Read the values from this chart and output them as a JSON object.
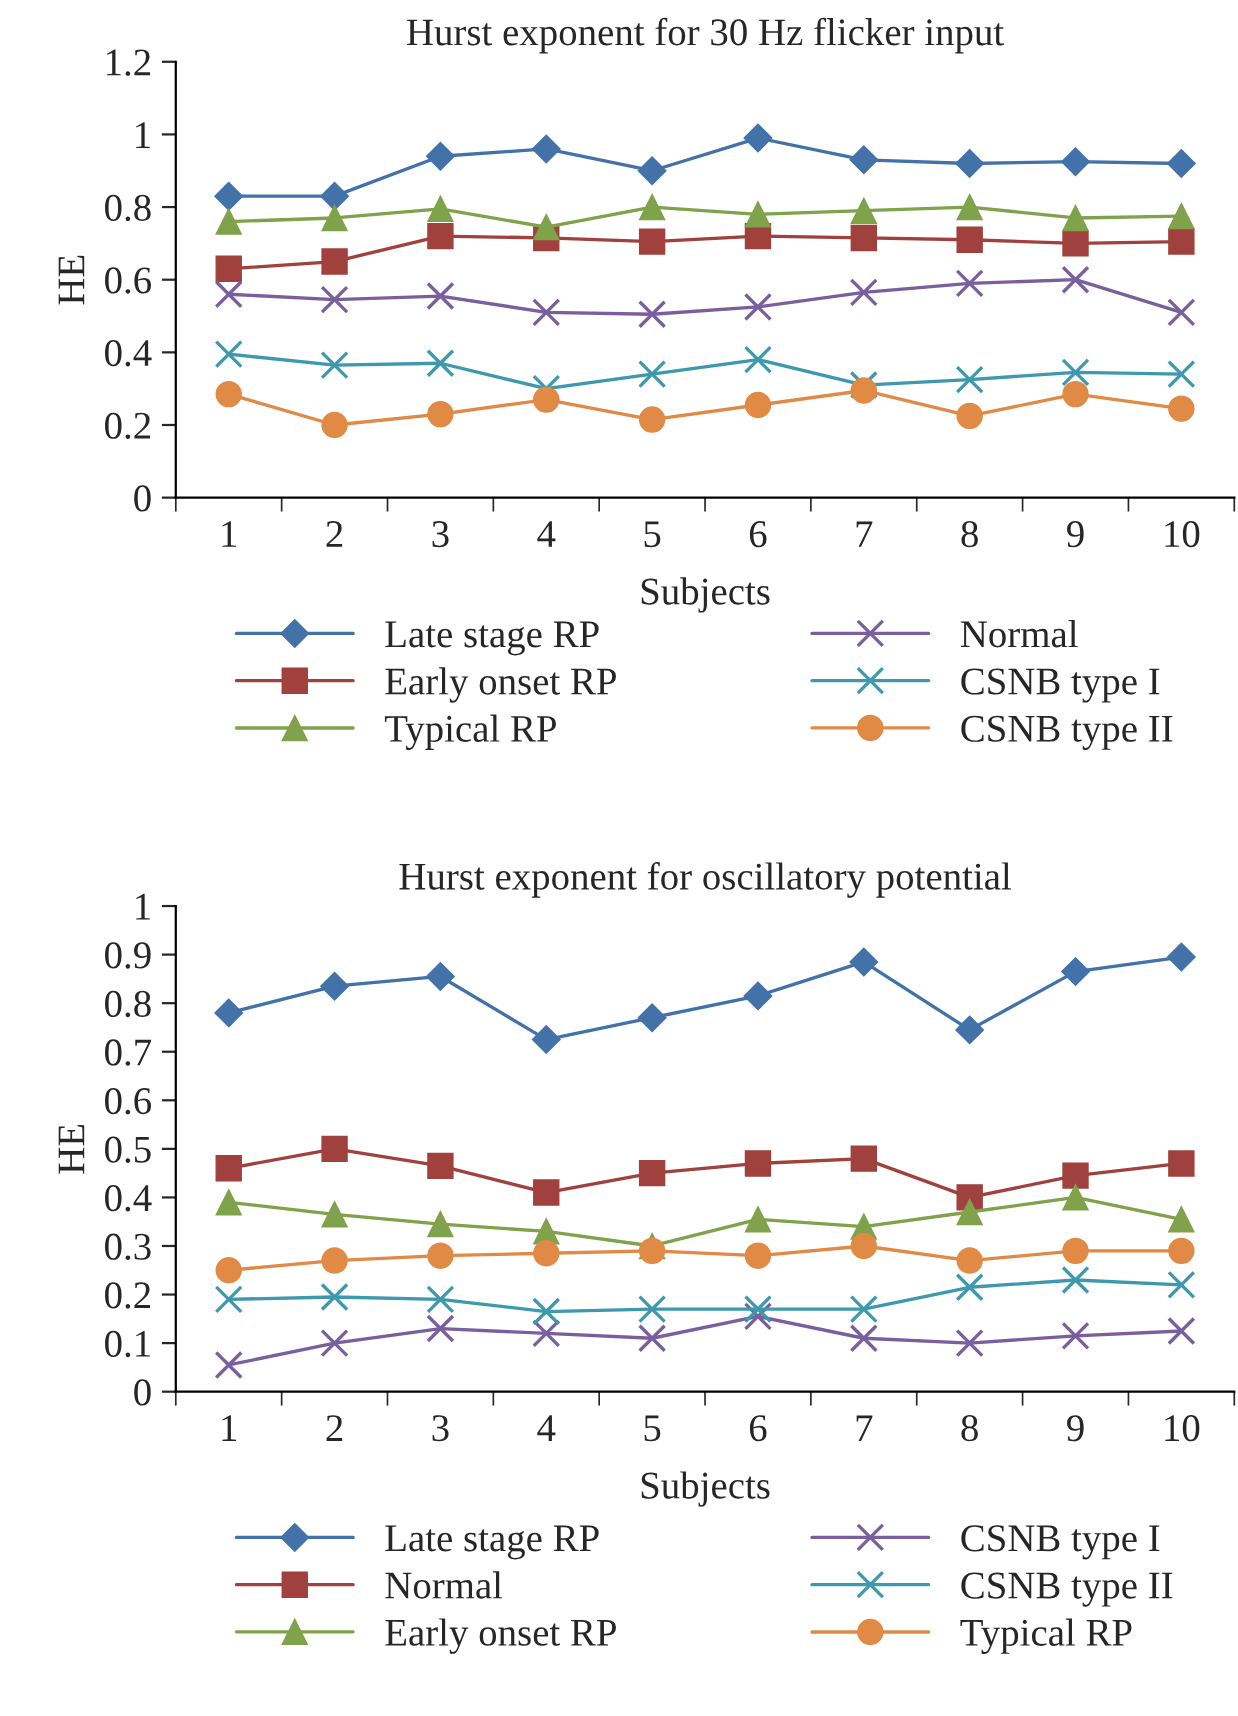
{
  "chart_data": [
    {
      "type": "line",
      "title": "Hurst exponent for 30 Hz flicker input",
      "xlabel": "Subjects",
      "ylabel": "HE",
      "categories": [
        "1",
        "2",
        "3",
        "4",
        "5",
        "6",
        "7",
        "8",
        "9",
        "10"
      ],
      "ylim": [
        0,
        1.2
      ],
      "yticks": [
        0,
        0.2,
        0.4,
        0.6,
        0.8,
        1,
        1.2
      ],
      "grid": false,
      "legend": "bottom",
      "line_style": "solid",
      "series": [
        {
          "name": "Late stage RP",
          "color": "#4272a8",
          "marker": "diamond",
          "values": [
            0.83,
            0.83,
            0.94,
            0.96,
            0.9,
            0.99,
            0.93,
            0.92,
            0.925,
            0.92
          ]
        },
        {
          "name": "Early onset RP",
          "color": "#a0413e",
          "marker": "square",
          "values": [
            0.63,
            0.65,
            0.72,
            0.715,
            0.705,
            0.72,
            0.715,
            0.71,
            0.7,
            0.705
          ]
        },
        {
          "name": "Typical RP",
          "color": "#7fa24b",
          "marker": "triangle",
          "values": [
            0.76,
            0.77,
            0.795,
            0.745,
            0.8,
            0.78,
            0.79,
            0.8,
            0.77,
            0.775
          ]
        },
        {
          "name": "Normal",
          "color": "#7a5f9e",
          "marker": "cross",
          "values": [
            0.56,
            0.545,
            0.555,
            0.51,
            0.505,
            0.525,
            0.565,
            0.59,
            0.6,
            0.51
          ]
        },
        {
          "name": "CSNB type I",
          "color": "#3e99ae",
          "marker": "cross",
          "values": [
            0.395,
            0.365,
            0.37,
            0.3,
            0.34,
            0.38,
            0.31,
            0.325,
            0.345,
            0.34
          ]
        },
        {
          "name": "CSNB type II",
          "color": "#e08a45",
          "marker": "circle",
          "values": [
            0.285,
            0.2,
            0.23,
            0.27,
            0.215,
            0.255,
            0.295,
            0.225,
            0.285,
            0.245
          ]
        }
      ]
    },
    {
      "type": "line",
      "title": "Hurst exponent for oscillatory potential",
      "xlabel": "Subjects",
      "ylabel": "HE",
      "categories": [
        "1",
        "2",
        "3",
        "4",
        "5",
        "6",
        "7",
        "8",
        "9",
        "10"
      ],
      "ylim": [
        0,
        1
      ],
      "yticks": [
        0,
        0.1,
        0.2,
        0.3,
        0.4,
        0.5,
        0.6,
        0.7,
        0.8,
        0.9,
        1
      ],
      "grid": false,
      "legend": "bottom",
      "line_style": "solid",
      "series": [
        {
          "name": "Late stage RP",
          "color": "#4272a8",
          "marker": "diamond",
          "values": [
            0.78,
            0.835,
            0.855,
            0.725,
            0.77,
            0.815,
            0.885,
            0.745,
            0.865,
            0.895
          ]
        },
        {
          "name": "Normal",
          "color": "#a0413e",
          "marker": "square",
          "values": [
            0.46,
            0.5,
            0.465,
            0.41,
            0.45,
            0.47,
            0.48,
            0.4,
            0.445,
            0.47
          ]
        },
        {
          "name": "Early onset RP",
          "color": "#7fa24b",
          "marker": "triangle",
          "values": [
            0.39,
            0.365,
            0.345,
            0.33,
            0.3,
            0.355,
            0.34,
            0.37,
            0.4,
            0.355
          ]
        },
        {
          "name": "CSNB type I",
          "color": "#7a5f9e",
          "marker": "cross",
          "values": [
            0.055,
            0.1,
            0.13,
            0.12,
            0.11,
            0.155,
            0.11,
            0.1,
            0.115,
            0.125
          ]
        },
        {
          "name": "CSNB type II",
          "color": "#3e99ae",
          "marker": "cross",
          "values": [
            0.19,
            0.195,
            0.19,
            0.165,
            0.17,
            0.17,
            0.17,
            0.215,
            0.23,
            0.22
          ]
        },
        {
          "name": "Typical RP",
          "color": "#e08a45",
          "marker": "circle",
          "values": [
            0.25,
            0.27,
            0.28,
            0.285,
            0.29,
            0.28,
            0.3,
            0.27,
            0.29,
            0.29
          ]
        }
      ]
    }
  ]
}
